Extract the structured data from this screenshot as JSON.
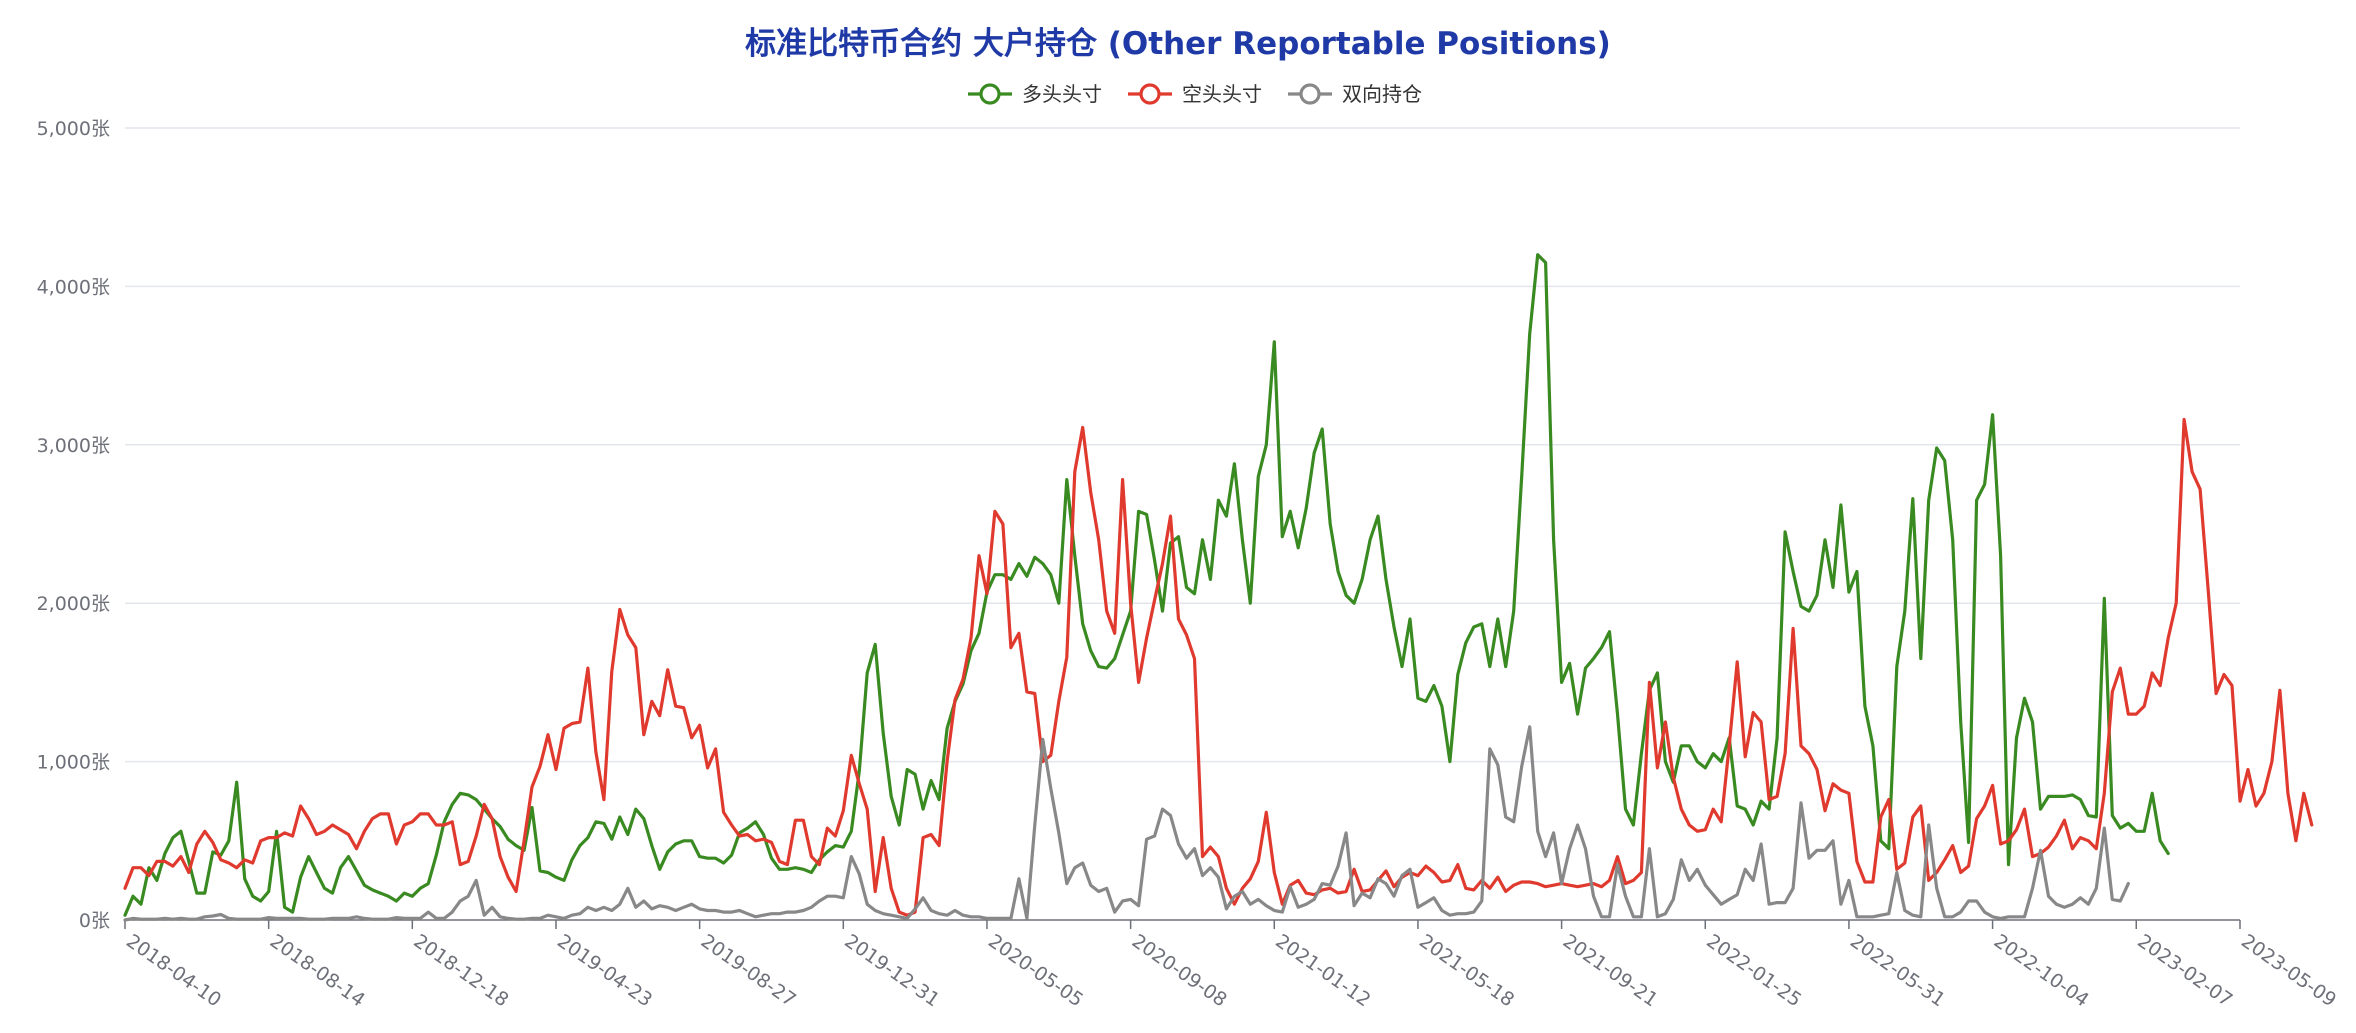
{
  "chart_data": {
    "type": "line",
    "title": "标准比特币合约 大户持仓 (Other Reportable Positions)",
    "y_unit": "张",
    "ylim": [
      0,
      5000
    ],
    "y_ticks": [
      0,
      1000,
      2000,
      3000,
      4000,
      5000
    ],
    "y_tick_labels": [
      "0张",
      "1,000张",
      "2,000张",
      "3,000张",
      "4,000张",
      "5,000张"
    ],
    "x_tick_labels": [
      "2018-04-10",
      "2018-08-14",
      "2018-12-18",
      "2019-04-23",
      "2019-08-27",
      "2019-12-31",
      "2020-05-05",
      "2020-09-08",
      "2021-01-12",
      "2021-05-18",
      "2021-09-21",
      "2022-01-25",
      "2022-05-31",
      "2022-10-04",
      "2023-02-07",
      "2023-05-09"
    ],
    "x_tick_weeks": [
      0,
      18,
      36,
      54,
      72,
      90,
      108,
      126,
      144,
      162,
      180,
      198,
      216,
      234,
      252,
      265
    ],
    "grid": true,
    "legend_position": "top-center",
    "series": [
      {
        "name": "多头头寸",
        "color": "#3a8a22",
        "values": [
          30,
          150,
          100,
          330,
          250,
          420,
          520,
          560,
          370,
          170,
          170,
          430,
          410,
          500,
          870,
          260,
          150,
          120,
          180,
          560,
          80,
          50,
          270,
          400,
          300,
          200,
          170,
          330,
          400,
          310,
          220,
          190,
          170,
          150,
          120,
          170,
          150,
          200,
          230,
          410,
          620,
          730,
          800,
          790,
          760,
          700,
          640,
          590,
          510,
          470,
          440,
          710,
          310,
          300,
          270,
          250,
          380,
          470,
          520,
          620,
          610,
          510,
          650,
          540,
          700,
          640,
          470,
          320,
          430,
          480,
          500,
          500,
          400,
          390,
          390,
          360,
          410,
          550,
          580,
          620,
          540,
          390,
          320,
          320,
          330,
          320,
          300,
          380,
          430,
          470,
          460,
          560,
          940,
          1560,
          1740,
          1180,
          780,
          600,
          950,
          920,
          700,
          880,
          760,
          1210,
          1380,
          1490,
          1700,
          1810,
          2070,
          2180,
          2180,
          2150,
          2250,
          2170,
          2290,
          2250,
          2180,
          2000,
          2780,
          2300,
          1870,
          1700,
          1600,
          1590,
          1650,
          1800,
          1950,
          2580,
          2560,
          2270,
          1950,
          2380,
          2420,
          2100,
          2060,
          2400,
          2150,
          2650,
          2550,
          2880,
          2400,
          2000,
          2800,
          3000,
          3650,
          2420,
          2580,
          2350,
          2600,
          2950,
          3100,
          2500,
          2200,
          2050,
          2000,
          2150,
          2400,
          2550,
          2150,
          1850,
          1600,
          1900,
          1400,
          1380,
          1480,
          1350,
          1000,
          1550,
          1750,
          1850,
          1870,
          1600,
          1900,
          1600,
          1950,
          2800,
          3700,
          4200,
          4150,
          2400,
          1500,
          1620,
          1300,
          1590,
          1650,
          1720,
          1820,
          1300,
          700,
          600,
          1050,
          1450,
          1560,
          1000,
          870,
          1100,
          1100,
          1000,
          960,
          1050,
          1000,
          1150,
          720,
          700,
          600,
          750,
          700,
          1150,
          2450,
          2200,
          1980,
          1950,
          2050,
          2400,
          2100,
          2620,
          2070,
          2200,
          1350,
          1100,
          500,
          450,
          1600,
          1950,
          2660,
          1650,
          2650,
          2980,
          2900,
          2400,
          1250,
          490,
          2650,
          2750,
          3190,
          2300,
          350,
          1150,
          1400,
          1250,
          700,
          780,
          780,
          780,
          790,
          760,
          660,
          650,
          2030,
          660,
          580,
          610,
          560,
          560,
          800,
          500,
          420
        ]
      },
      {
        "name": "空头头寸",
        "color": "#e03a2f",
        "values": [
          200,
          330,
          330,
          280,
          370,
          370,
          340,
          400,
          300,
          480,
          560,
          490,
          380,
          360,
          330,
          380,
          360,
          500,
          520,
          520,
          550,
          530,
          720,
          640,
          540,
          560,
          600,
          570,
          540,
          450,
          560,
          640,
          670,
          670,
          480,
          600,
          620,
          670,
          670,
          600,
          600,
          620,
          350,
          370,
          530,
          730,
          640,
          400,
          270,
          180,
          500,
          840,
          970,
          1170,
          950,
          1210,
          1240,
          1250,
          1590,
          1060,
          760,
          1570,
          1960,
          1800,
          1720,
          1170,
          1380,
          1290,
          1580,
          1350,
          1340,
          1150,
          1230,
          960,
          1080,
          680,
          600,
          530,
          540,
          500,
          510,
          490,
          370,
          350,
          630,
          630,
          400,
          350,
          580,
          530,
          690,
          1040,
          860,
          700,
          180,
          520,
          200,
          50,
          30,
          50,
          520,
          540,
          470,
          1000,
          1390,
          1520,
          1780,
          2300,
          2060,
          2580,
          2500,
          1720,
          1810,
          1440,
          1430,
          1000,
          1040,
          1380,
          1660,
          2830,
          3110,
          2700,
          2400,
          1950,
          1810,
          2780,
          2000,
          1500,
          1780,
          2020,
          2250,
          2550,
          1900,
          1800,
          1650,
          400,
          460,
          400,
          200,
          100,
          200,
          260,
          370,
          680,
          300,
          100,
          220,
          250,
          170,
          160,
          190,
          200,
          170,
          180,
          320,
          180,
          190,
          250,
          310,
          210,
          270,
          300,
          280,
          340,
          300,
          240,
          250,
          350,
          200,
          190,
          250,
          200,
          270,
          180,
          220,
          240,
          240,
          230,
          210,
          220,
          230,
          220,
          210,
          220,
          230,
          210,
          250,
          400,
          230,
          250,
          300,
          1500,
          960,
          1250,
          900,
          700,
          600,
          560,
          570,
          700,
          620,
          1100,
          1630,
          1030,
          1310,
          1250,
          760,
          780,
          1050,
          1840,
          1100,
          1050,
          950,
          690,
          860,
          820,
          800,
          370,
          240,
          240,
          650,
          760,
          320,
          360,
          650,
          720,
          250,
          300,
          380,
          470,
          300,
          340,
          640,
          720,
          850,
          480,
          500,
          570,
          700,
          400,
          420,
          460,
          530,
          630,
          450,
          520,
          500,
          450,
          800,
          1440,
          1590,
          1300,
          1300,
          1350,
          1560,
          1480,
          1780,
          2000,
          3160,
          2830,
          2720,
          2090,
          1430,
          1550,
          1480,
          750,
          950,
          720,
          800,
          1000,
          1450,
          800,
          500,
          800,
          600
        ]
      },
      {
        "name": "双向持仓",
        "color": "#888888",
        "values": [
          0,
          10,
          5,
          5,
          5,
          10,
          5,
          10,
          5,
          5,
          20,
          25,
          35,
          10,
          5,
          5,
          5,
          5,
          15,
          10,
          10,
          10,
          10,
          5,
          5,
          5,
          10,
          10,
          10,
          20,
          10,
          5,
          5,
          5,
          15,
          10,
          10,
          10,
          50,
          10,
          10,
          50,
          120,
          150,
          250,
          30,
          80,
          20,
          10,
          5,
          5,
          10,
          10,
          30,
          20,
          10,
          30,
          40,
          80,
          60,
          80,
          60,
          100,
          200,
          80,
          120,
          70,
          90,
          80,
          60,
          80,
          100,
          70,
          60,
          60,
          50,
          50,
          60,
          40,
          20,
          30,
          40,
          40,
          50,
          50,
          60,
          80,
          120,
          150,
          150,
          140,
          400,
          290,
          100,
          60,
          40,
          30,
          20,
          10,
          70,
          140,
          60,
          40,
          30,
          60,
          30,
          20,
          20,
          10,
          10,
          10,
          10,
          260,
          10,
          600,
          1140,
          830,
          550,
          230,
          330,
          360,
          220,
          180,
          200,
          50,
          120,
          130,
          90,
          510,
          530,
          700,
          660,
          480,
          390,
          450,
          280,
          330,
          270,
          70,
          150,
          180,
          100,
          130,
          90,
          60,
          50,
          210,
          80,
          100,
          130,
          230,
          220,
          340,
          550,
          90,
          170,
          140,
          260,
          230,
          150,
          280,
          320,
          80,
          110,
          140,
          60,
          30,
          40,
          40,
          50,
          120,
          1080,
          980,
          650,
          620,
          970,
          1220,
          560,
          400,
          550,
          230,
          450,
          600,
          450,
          150,
          20,
          20,
          350,
          150,
          20,
          20,
          450,
          20,
          40,
          130,
          380,
          250,
          320,
          220,
          160,
          100,
          130,
          160,
          320,
          250,
          480,
          100,
          110,
          110,
          200,
          740,
          390,
          440,
          440,
          500,
          100,
          250,
          20,
          20,
          20,
          30,
          40,
          300,
          60,
          30,
          20,
          600,
          200,
          20,
          20,
          50,
          120,
          120,
          50,
          20,
          10,
          20,
          20,
          20,
          200,
          440,
          150,
          100,
          80,
          100,
          140,
          100,
          200,
          580,
          130,
          120,
          230
        ]
      }
    ]
  }
}
